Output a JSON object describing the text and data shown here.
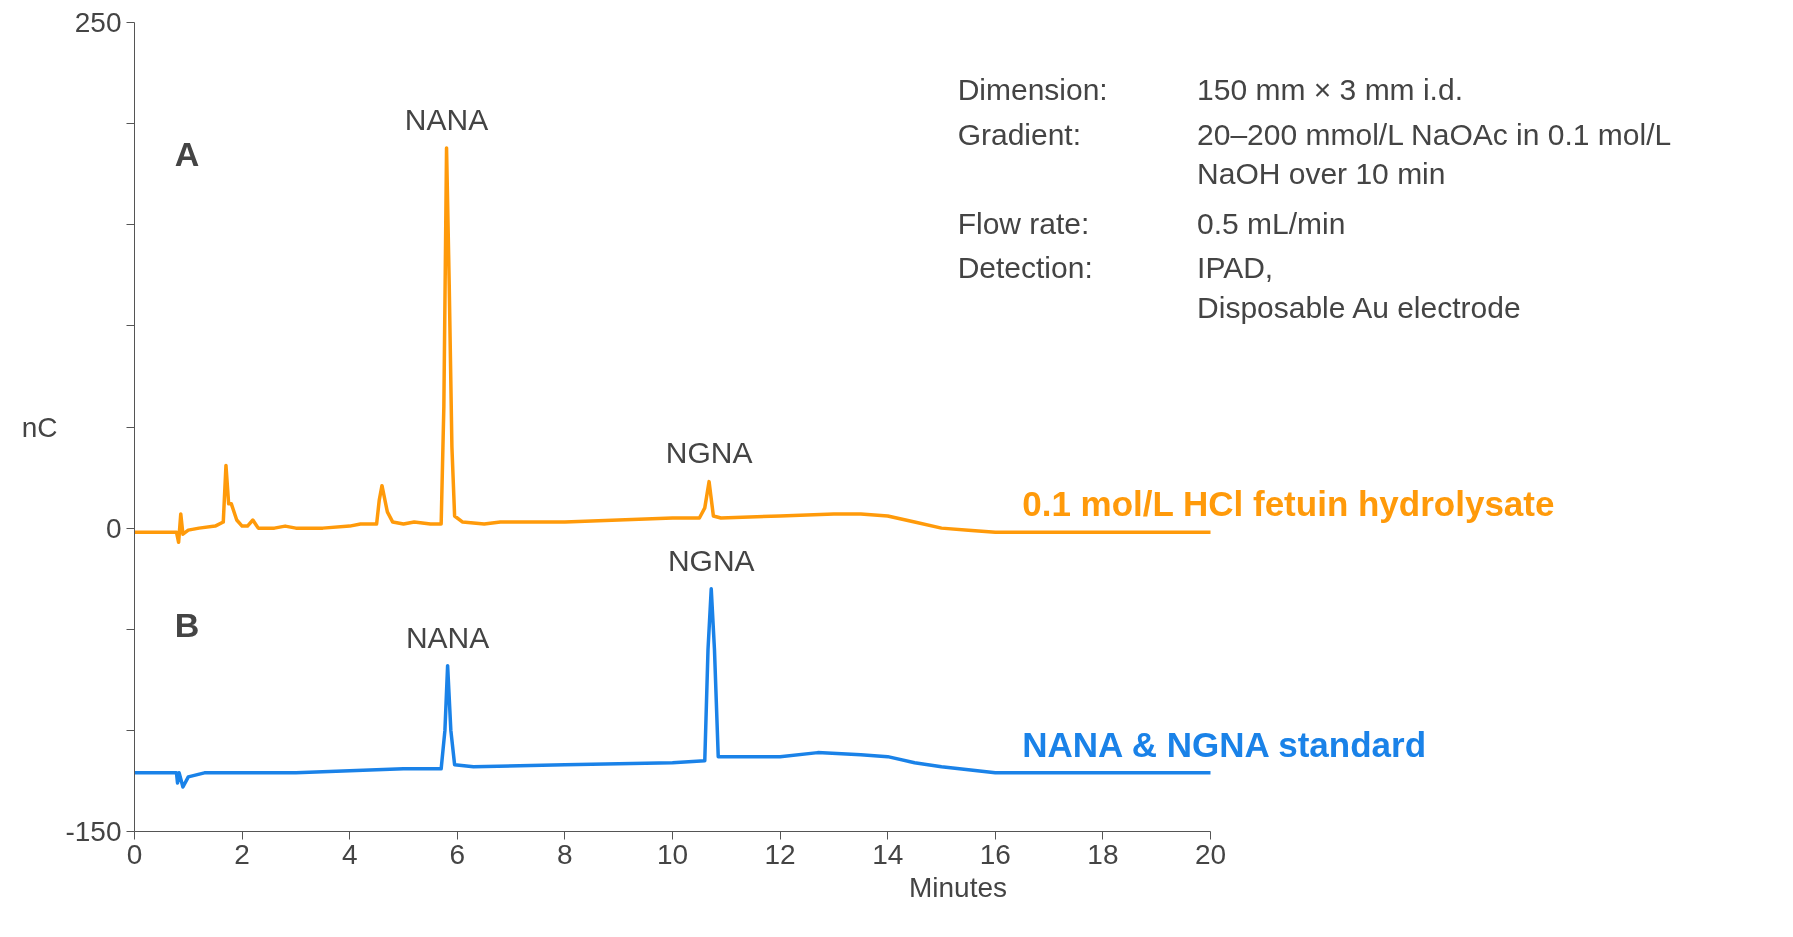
{
  "chart_data": {
    "type": "line",
    "xlabel": "Minutes",
    "ylabel": "nC",
    "xlim": [
      0,
      20
    ],
    "xticks": [
      0,
      2,
      4,
      6,
      8,
      10,
      12,
      14,
      16,
      18,
      20
    ],
    "ylim": [
      -150,
      250
    ],
    "yticks": [
      250,
      {
        "value": 200,
        "label": null
      },
      {
        "value": 150,
        "label": null
      },
      {
        "value": 100,
        "label": null
      },
      {
        "value": 50,
        "label": null
      },
      0,
      {
        "value": -50,
        "label": null
      },
      {
        "value": -100,
        "label": null
      },
      -150
    ],
    "grid": false,
    "marker": "none",
    "line_style": "solid",
    "series": [
      {
        "name": "0.1 mol/L HCl fetuin hydrolysate",
        "color": "#ff9a0a",
        "x": [
          0,
          0.78,
          0.82,
          0.86,
          0.9,
          1.0,
          1.2,
          1.5,
          1.65,
          1.7,
          1.75,
          1.8,
          1.9,
          2.0,
          2.1,
          2.2,
          2.3,
          2.6,
          2.8,
          3.0,
          3.5,
          4.0,
          4.2,
          4.5,
          4.55,
          4.6,
          4.7,
          4.8,
          5.0,
          5.2,
          5.5,
          5.7,
          5.75,
          5.8,
          5.85,
          5.9,
          5.95,
          6.1,
          6.5,
          6.8,
          7.5,
          8,
          9,
          10,
          10.5,
          10.6,
          10.68,
          10.76,
          10.9,
          12,
          13,
          13.5,
          14,
          14.5,
          15,
          15.5,
          16,
          18,
          20
        ],
        "values": [
          -2,
          -2,
          -7,
          7,
          -3,
          -1,
          0,
          1,
          3,
          31,
          12,
          12,
          4,
          1,
          1,
          4,
          0,
          0,
          1,
          0,
          0,
          1,
          2,
          2,
          14,
          21,
          8,
          3,
          2,
          3,
          2,
          2,
          60,
          188,
          120,
          40,
          6,
          3,
          2,
          3,
          3,
          3,
          4,
          5,
          5,
          10,
          23,
          6,
          5,
          6,
          7,
          7,
          6,
          3,
          0,
          -1,
          -2,
          -2,
          -2
        ]
      },
      {
        "name": "NANA & NGNA standard",
        "color": "#1a82e8",
        "x": [
          0,
          0.78,
          0.8,
          0.83,
          0.9,
          1.0,
          1.3,
          3,
          4,
          5,
          5.7,
          5.77,
          5.82,
          5.88,
          5.95,
          6.3,
          8,
          10,
          10.6,
          10.66,
          10.72,
          10.78,
          10.85,
          11,
          12,
          12.7,
          13.5,
          14,
          14.5,
          15,
          16,
          18,
          20
        ],
        "values": [
          -121,
          -121,
          -126,
          -121,
          -128,
          -123,
          -121,
          -121,
          -120,
          -119,
          -119,
          -100,
          -68,
          -100,
          -117,
          -118,
          -117,
          -116,
          -115,
          -60,
          -30,
          -60,
          -113,
          -113,
          -113,
          -111,
          -112,
          -113,
          -116,
          -118,
          -121,
          -121,
          -121
        ]
      }
    ],
    "annotations": [
      "A",
      "B",
      "Dimension:",
      "150 mm × 3 mm i.d.",
      "Gradient:",
      "20–200 mmol/L NaOAc in 0.1 mol/L\nNaOH over 10 min",
      "Flow rate:",
      "0.5 mL/min",
      "Detection:",
      "IPAD,\nDisposable Au electrode",
      {
        "text": "NANA",
        "x": 5.8,
        "y": 188
      },
      {
        "text": "NGNA",
        "x": 10.68,
        "y": 23
      },
      {
        "text": "NANA",
        "x": 5.82,
        "y": -68
      },
      {
        "text": "NGNA",
        "x": 10.72,
        "y": -30
      }
    ]
  }
}
